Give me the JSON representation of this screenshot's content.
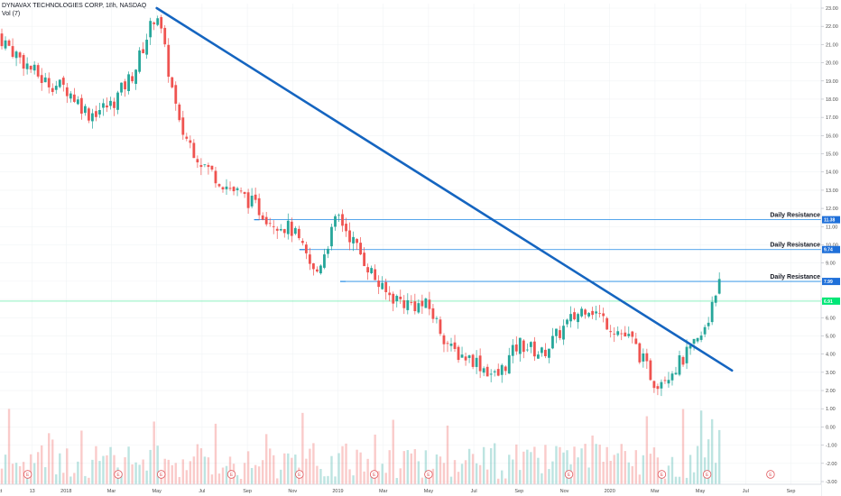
{
  "header": {
    "title": "DYNAVAX TECHNOLOGIES CORP, 18h, NASDAQ",
    "volume_label": "Vol (7)"
  },
  "colors": {
    "up": "#26a69a",
    "down": "#ef5350",
    "trendline": "#1565c0",
    "resistance": "#1e88e5",
    "current": "#00e676"
  },
  "chart_data": {
    "type": "candlestick",
    "y_axis": {
      "min": -3,
      "max": 23,
      "ticks": [
        "23.00",
        "22.00",
        "21.00",
        "20.00",
        "19.00",
        "18.00",
        "17.00",
        "16.00",
        "15.00",
        "14.00",
        "13.00",
        "12.00",
        "11.00",
        "10.00",
        "9.00",
        "8.00",
        "7.00",
        "6.00",
        "5.00",
        "4.00",
        "3.00",
        "2.00",
        "1.00",
        "0.00",
        "-1.00",
        "-2.00",
        "-3.00"
      ]
    },
    "x_axis": {
      "labels": [
        "Oct",
        "13",
        "2018",
        "Mar",
        "May",
        "Jul",
        "Sep",
        "Nov",
        "2019",
        "Mar",
        "May",
        "Jul",
        "Sep",
        "Nov",
        "2020",
        "Mar",
        "May",
        "Jul",
        "Sep"
      ]
    },
    "price_path": [
      {
        "x": "Oct 2017",
        "y": 21.5
      },
      {
        "x": "Nov 2017",
        "y": 20.2
      },
      {
        "x": "Dec 2017",
        "y": 19.0
      },
      {
        "x": "Jan 2018",
        "y": 18.6
      },
      {
        "x": "Feb 2018",
        "y": 17.2
      },
      {
        "x": "Mar 2018",
        "y": 17.7
      },
      {
        "x": "Apr 2018",
        "y": 19.5
      },
      {
        "x": "May 2018",
        "y": 22.9
      },
      {
        "x": "Jun 2018",
        "y": 16.5
      },
      {
        "x": "Jul 2018",
        "y": 14.5
      },
      {
        "x": "Aug 2018",
        "y": 13.3
      },
      {
        "x": "Sep 2018",
        "y": 12.5
      },
      {
        "x": "Oct 2018",
        "y": 11.4
      },
      {
        "x": "Nov 2018",
        "y": 10.8
      },
      {
        "x": "Dec 2018",
        "y": 8.3
      },
      {
        "x": "Jan 2019",
        "y": 11.6
      },
      {
        "x": "Feb 2019",
        "y": 9.5
      },
      {
        "x": "Mar 2019",
        "y": 7.4
      },
      {
        "x": "Apr 2019",
        "y": 6.8
      },
      {
        "x": "May 2019",
        "y": 6.6
      },
      {
        "x": "Jun 2019",
        "y": 4.2
      },
      {
        "x": "Jul 2019",
        "y": 3.7
      },
      {
        "x": "Aug 2019",
        "y": 2.7
      },
      {
        "x": "Sep 2019",
        "y": 4.6
      },
      {
        "x": "Oct 2019",
        "y": 4.0
      },
      {
        "x": "Nov 2019",
        "y": 5.5
      },
      {
        "x": "Dec 2019",
        "y": 6.7
      },
      {
        "x": "Jan 2020",
        "y": 5.6
      },
      {
        "x": "Feb 2020",
        "y": 4.7
      },
      {
        "x": "Mar 2020",
        "y": 2.4
      },
      {
        "x": "Apr 2020",
        "y": 3.4
      },
      {
        "x": "May 2020",
        "y": 4.8
      },
      {
        "x": "May 2020 end",
        "y": 7.9
      }
    ],
    "current_price": "6.91",
    "resistance_levels": [
      {
        "label": "Daily Resistance",
        "price": "11.38"
      },
      {
        "label": "Daily Resistance",
        "price": "9.74"
      },
      {
        "label": "Daily Resistance",
        "price": "7.99"
      }
    ],
    "trendline": {
      "start": {
        "x": "May 2018",
        "y": 23.0
      },
      "end": {
        "x": "Jun 2020",
        "y": 3.1
      }
    },
    "earnings_marker": "E",
    "grid": true
  }
}
